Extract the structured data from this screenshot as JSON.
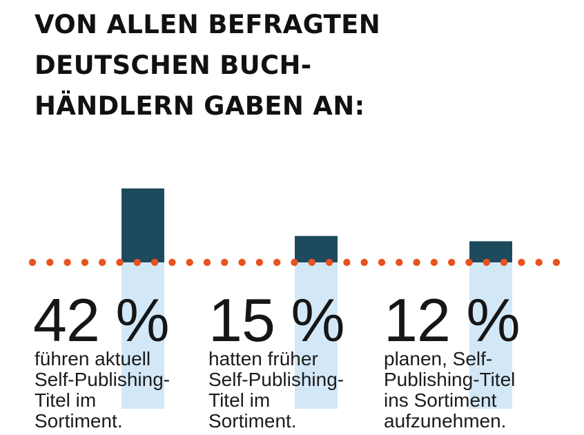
{
  "title_lines": [
    "VON ALLEN BEFRAGTEN",
    "DEUTSCHEN BUCH-",
    "HÄNDLERN GABEN AN:"
  ],
  "colors": {
    "bar_upper": "#1e4a5e",
    "bar_lower": "#d3e8f7",
    "dots": "#e8531e",
    "text": "#161616"
  },
  "chart_data": {
    "type": "bar",
    "title": "VON ALLEN BEFRAGTEN DEUTSCHEN BUCHHÄNDLERN GABEN AN:",
    "categories": [
      "führen aktuell Self-Publishing-Titel im Sortiment.",
      "hatten früher Self-Publishing-Titel im Sortiment.",
      "planen, Self-Publishing-Titel ins Sortiment aufzunehmen."
    ],
    "values": [
      42,
      15,
      12
    ],
    "unit": "%",
    "ylim": [
      0,
      100
    ],
    "grid": false,
    "legend": "none"
  },
  "items": [
    {
      "value_label": "42 %",
      "desc_lines": [
        "führen aktuell",
        "Self-Publishing-",
        "Titel im",
        "Sortiment."
      ]
    },
    {
      "value_label": "15 %",
      "desc_lines": [
        "hatten früher",
        "Self-Publishing-",
        "Titel im",
        "Sortiment."
      ]
    },
    {
      "value_label": "12 %",
      "desc_lines": [
        "planen, Self-",
        "Publishing-Titel",
        "ins Sortiment",
        "aufzunehmen."
      ]
    }
  ]
}
